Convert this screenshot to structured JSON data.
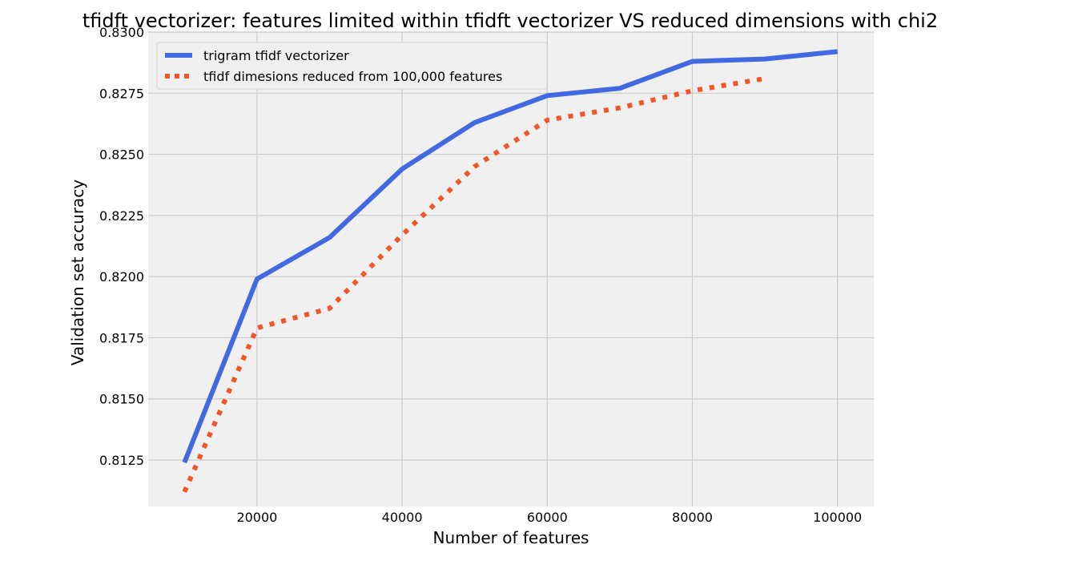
{
  "chart_data": {
    "type": "line",
    "title": "tfidft vectorizer: features limited within tfidft vectorizer VS reduced dimensions with chi2",
    "xlabel": "Number of features",
    "ylabel": "Validation set accuracy",
    "xlim": [
      5000,
      105000
    ],
    "ylim": [
      0.8106,
      0.83
    ],
    "x_ticks": [
      20000,
      40000,
      60000,
      80000,
      100000
    ],
    "x_tick_labels": [
      "20000",
      "40000",
      "60000",
      "80000",
      "100000"
    ],
    "y_ticks": [
      0.8125,
      0.815,
      0.8175,
      0.82,
      0.8225,
      0.825,
      0.8275,
      0.83
    ],
    "y_tick_labels": [
      "0.8125",
      "0.8150",
      "0.8175",
      "0.8200",
      "0.8225",
      "0.8250",
      "0.8275",
      "0.8300"
    ],
    "grid": true,
    "legend_position": "top-left",
    "series": [
      {
        "name": "trigram tfidf vectorizer",
        "color": "#4169E1",
        "style": "solid",
        "x": [
          10000,
          20000,
          30000,
          40000,
          50000,
          60000,
          70000,
          80000,
          90000,
          100000
        ],
        "y": [
          0.8124,
          0.8199,
          0.8216,
          0.8244,
          0.8263,
          0.8274,
          0.8277,
          0.8288,
          0.8289,
          0.8292
        ]
      },
      {
        "name": "tfidf dimesions reduced from 100,000 features",
        "color": "#F0562A",
        "style": "dotted",
        "x": [
          10000,
          20000,
          30000,
          40000,
          50000,
          60000,
          70000,
          80000,
          90000
        ],
        "y": [
          0.8112,
          0.8179,
          0.8187,
          0.8217,
          0.8245,
          0.8264,
          0.8269,
          0.8276,
          0.8281
        ]
      }
    ]
  }
}
